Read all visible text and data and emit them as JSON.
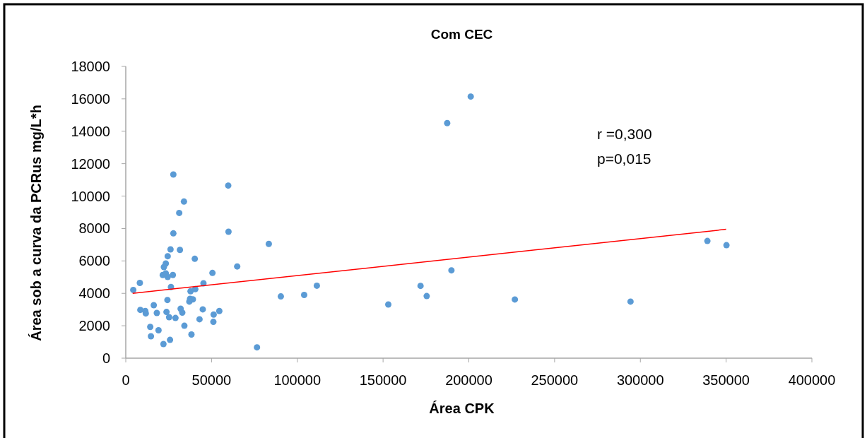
{
  "chart_data": {
    "type": "scatter",
    "title": "Com CEC",
    "xlabel": "Área CPK",
    "ylabel": "Área sob a curva da PCRus mg/L*h",
    "xlim": [
      0,
      400000
    ],
    "xticks": [
      0,
      50000,
      100000,
      150000,
      200000,
      250000,
      300000,
      350000,
      400000
    ],
    "ylim": [
      0,
      18000
    ],
    "yticks": [
      0,
      2000,
      4000,
      6000,
      8000,
      10000,
      12000,
      14000,
      16000,
      18000
    ],
    "grid": false,
    "annotations": [
      "r =0,300",
      "p=0,015"
    ],
    "series": [
      {
        "marker": "circle",
        "color": "#5b9bd5",
        "x": [
          27740,
          59730,
          33920,
          31160,
          27740,
          59890,
          83390,
          26090,
          31570,
          24440,
          40230,
          23330,
          22220,
          64960,
          21560,
          23330,
          24440,
          27450,
          50530,
          8200,
          4370,
          45300,
          26340,
          40520,
          37760,
          90400,
          24280,
          37470,
          39120,
          37060,
          16320,
          8490,
          11380,
          11670,
          18100,
          23740,
          31990,
          32940,
          44890,
          54530,
          51240,
          25270,
          28980,
          42990,
          51070,
          34170,
          14260,
          19090,
          14670,
          38290,
          25800,
          21970,
          76500,
          104000,
          111400,
          153050,
          171850,
          175430,
          189860,
          187390,
          201110,
          226830,
          294270,
          339080,
          350200
        ],
        "values": [
          11330,
          10650,
          9660,
          8960,
          7700,
          7800,
          7050,
          6710,
          6680,
          6290,
          6130,
          5840,
          5620,
          5660,
          5130,
          5230,
          5010,
          5130,
          5260,
          4640,
          4210,
          4620,
          4390,
          4260,
          4130,
          3810,
          3590,
          3660,
          3630,
          3490,
          3270,
          2980,
          2910,
          2760,
          2790,
          2850,
          3050,
          2810,
          3010,
          2910,
          2690,
          2530,
          2480,
          2400,
          2240,
          2000,
          1930,
          1720,
          1350,
          1460,
          1130,
          870,
          670,
          3900,
          4470,
          3310,
          4460,
          3830,
          5420,
          14500,
          16140,
          3620,
          3490,
          7230,
          6970
        ]
      },
      {
        "type": "line",
        "marker": "none",
        "color": "#ff0000",
        "x": [
          4000,
          350000
        ],
        "values": [
          4000,
          7950
        ]
      }
    ]
  }
}
